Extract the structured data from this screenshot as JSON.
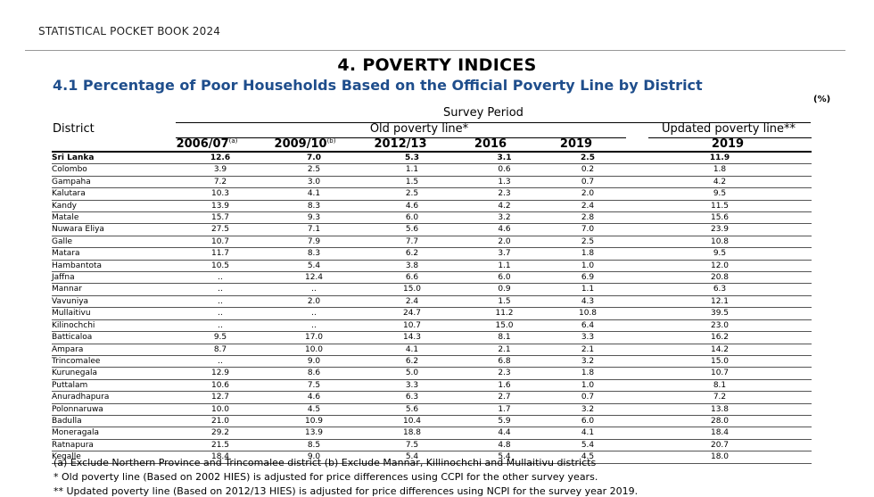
{
  "header": {
    "book_title": "STATISTICAL POCKET BOOK 2024"
  },
  "chapter": {
    "title": "4.  POVERTY INDICES"
  },
  "section": {
    "title": "4.1 Percentage of Poor Households Based on the Official Poverty Line by District"
  },
  "unit": "(%)",
  "table": {
    "survey_period_label": "Survey Period",
    "district_label": "District",
    "old_line_label": "Old poverty line*",
    "updated_line_label": "Updated poverty line**",
    "columns": [
      "2006/07",
      "2009/10",
      "2012/13",
      "2016",
      "2019",
      "2019"
    ],
    "column_sups": [
      "(a)",
      "(b)",
      "",
      "",
      "",
      ""
    ],
    "rows": [
      [
        "Sri Lanka",
        "12.6",
        "7.0",
        "5.3",
        "3.1",
        "2.5",
        "11.9"
      ],
      [
        "Colombo",
        "3.9",
        "2.5",
        "1.1",
        "0.6",
        "0.2",
        "1.8"
      ],
      [
        "Gampaha",
        "7.2",
        "3.0",
        "1.5",
        "1.3",
        "0.7",
        "4.2"
      ],
      [
        "Kalutara",
        "10.3",
        "4.1",
        "2.5",
        "2.3",
        "2.0",
        "9.5"
      ],
      [
        "Kandy",
        "13.9",
        "8.3",
        "4.6",
        "4.2",
        "2.4",
        "11.5"
      ],
      [
        "Matale",
        "15.7",
        "9.3",
        "6.0",
        "3.2",
        "2.8",
        "15.6"
      ],
      [
        "Nuwara Eliya",
        "27.5",
        "7.1",
        "5.6",
        "4.6",
        "7.0",
        "23.9"
      ],
      [
        "Galle",
        "10.7",
        "7.9",
        "7.7",
        "2.0",
        "2.5",
        "10.8"
      ],
      [
        "Matara",
        "11.7",
        "8.3",
        "6.2",
        "3.7",
        "1.8",
        "9.5"
      ],
      [
        "Hambantota",
        "10.5",
        "5.4",
        "3.8",
        "1.1",
        "1.0",
        "12.0"
      ],
      [
        "Jaffna",
        "..",
        "12.4",
        "6.6",
        "6.0",
        "6.9",
        "20.8"
      ],
      [
        "Mannar",
        "..",
        "..",
        "15.0",
        "0.9",
        "1.1",
        "6.3"
      ],
      [
        "Vavuniya",
        "..",
        "2.0",
        "2.4",
        "1.5",
        "4.3",
        "12.1"
      ],
      [
        "Mullaitivu",
        "..",
        "..",
        "24.7",
        "11.2",
        "10.8",
        "39.5"
      ],
      [
        "Kilinochchi",
        "..",
        "..",
        "10.7",
        "15.0",
        "6.4",
        "23.0"
      ],
      [
        "Batticaloa",
        "9.5",
        "17.0",
        "14.3",
        "8.1",
        "3.3",
        "16.2"
      ],
      [
        "Ampara",
        "8.7",
        "10.0",
        "4.1",
        "2.1",
        "2.1",
        "14.2"
      ],
      [
        "Trincomalee",
        "..",
        "9.0",
        "6.2",
        "6.8",
        "3.2",
        "15.0"
      ],
      [
        "Kurunegala",
        "12.9",
        "8.6",
        "5.0",
        "2.3",
        "1.8",
        "10.7"
      ],
      [
        "Puttalam",
        "10.6",
        "7.5",
        "3.3",
        "1.6",
        "1.0",
        "8.1"
      ],
      [
        "Anuradhapura",
        "12.7",
        "4.6",
        "6.3",
        "2.7",
        "0.7",
        "7.2"
      ],
      [
        "Polonnaruwa",
        "10.0",
        "4.5",
        "5.6",
        "1.7",
        "3.2",
        "13.8"
      ],
      [
        "Badulla",
        "21.0",
        "10.9",
        "10.4",
        "5.9",
        "6.0",
        "28.0"
      ],
      [
        "Moneragala",
        "29.2",
        "13.9",
        "18.8",
        "4.4",
        "4.1",
        "18.4"
      ],
      [
        "Ratnapura",
        "21.5",
        "8.5",
        "7.5",
        "4.8",
        "5.4",
        "20.7"
      ],
      [
        "Kegalle",
        "18.4",
        "9.0",
        "5.4",
        "5.4",
        "4.5",
        "18.0"
      ]
    ]
  },
  "notes": [
    "(a) Exclude Northern Province and Trincomalee district (b) Exclude Mannar, Killinochchi and Mullaitivu districts",
    "* Old poverty line (Based on 2002 HIES) is adjusted for price differences using CCPI for the other survey years.",
    "** Updated poverty line (Based on 2012/13 HIES) is adjusted for price differences using NCPI for the survey year 2019."
  ]
}
